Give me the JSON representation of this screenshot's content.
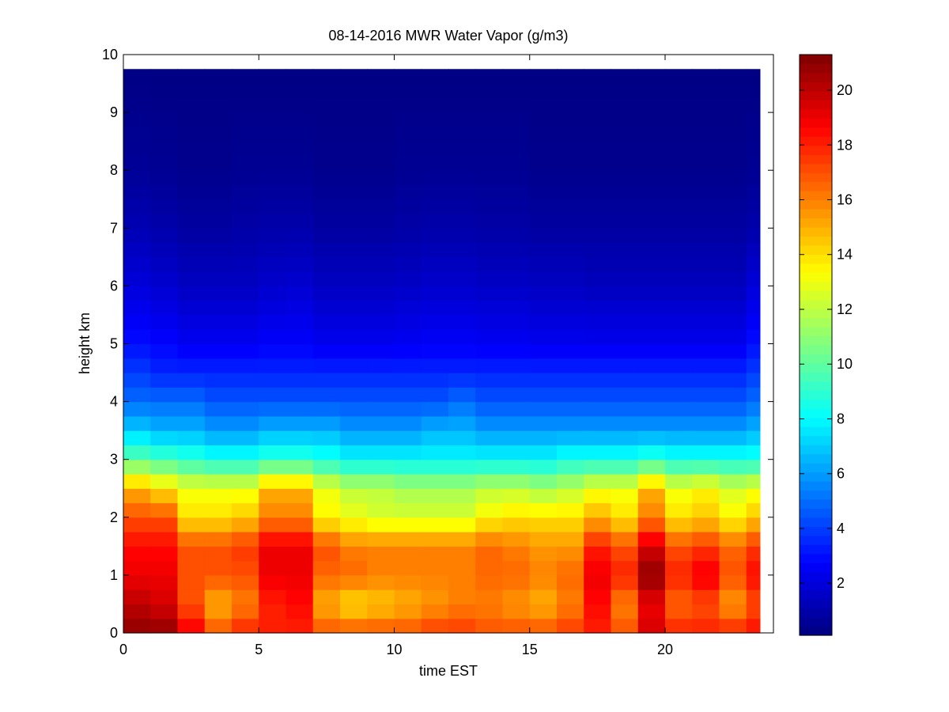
{
  "chart_data": {
    "type": "heatmap",
    "title": "08-14-2016 MWR Water Vapor (g/m3)",
    "xlabel": "time EST",
    "ylabel": "height km",
    "xlim": [
      0,
      24
    ],
    "ylim": [
      0,
      10
    ],
    "xticks": [
      0,
      5,
      10,
      15,
      20
    ],
    "yticks": [
      0,
      1,
      2,
      3,
      4,
      5,
      6,
      7,
      8,
      9,
      10
    ],
    "colormap": "jet",
    "clim": [
      0.1,
      21.3
    ],
    "colorbar_ticks": [
      2,
      4,
      6,
      8,
      10,
      12,
      14,
      16,
      18,
      20
    ],
    "data_extent": {
      "x": [
        0,
        23.5
      ],
      "y": [
        0,
        9.75
      ]
    },
    "time_hours": [
      0.5,
      1.5,
      2.5,
      3.5,
      4.5,
      5.5,
      6.5,
      7.5,
      8.5,
      9.5,
      10.5,
      11.5,
      12.5,
      13.5,
      14.5,
      15.5,
      16.5,
      17.5,
      18.5,
      19.5,
      20.5,
      21.5,
      22.5,
      23.5
    ],
    "profile_heights_km": [
      0,
      0.5,
      1.0,
      1.5,
      2.0,
      2.5,
      3.0,
      3.5,
      4.0,
      4.5,
      5.0,
      6.0,
      7.0,
      8.0,
      9.75
    ],
    "values_g_m3": [
      [
        21,
        20,
        19,
        18.5,
        17,
        15,
        10,
        7,
        5,
        4,
        3,
        2,
        1.2,
        0.6,
        0.2
      ],
      [
        21,
        19.5,
        19,
        18.5,
        17,
        14,
        9.5,
        6.5,
        5,
        3.5,
        2.8,
        1.8,
        1,
        0.5,
        0.2
      ],
      [
        19,
        17,
        17,
        17,
        14,
        13,
        9,
        6.5,
        5,
        3.5,
        2.5,
        1.5,
        0.8,
        0.4,
        0.2
      ],
      [
        17,
        15,
        17,
        17,
        14,
        13,
        8.5,
        6,
        4.5,
        3.5,
        2.5,
        1.5,
        0.8,
        0.4,
        0.2
      ],
      [
        18,
        16,
        17,
        17.5,
        14.5,
        13,
        8.5,
        6,
        4.5,
        3.5,
        2.5,
        1.5,
        0.9,
        0.5,
        0.2
      ],
      [
        18,
        18,
        19,
        19,
        16,
        15,
        9,
        6.5,
        4.5,
        3.5,
        2.7,
        1.7,
        1,
        0.5,
        0.2
      ],
      [
        18,
        18.5,
        19,
        19,
        16,
        15,
        9,
        6.5,
        4.5,
        3.5,
        2.7,
        1.8,
        1,
        0.5,
        0.2
      ],
      [
        17,
        15,
        16.5,
        17,
        13.5,
        13,
        8.5,
        6.5,
        4.5,
        3.5,
        2.4,
        1.5,
        0.8,
        0.4,
        0.2
      ],
      [
        17,
        14,
        16.5,
        16,
        13,
        12,
        8,
        6,
        4.5,
        3.5,
        2.4,
        1.5,
        0.8,
        0.4,
        0.2
      ],
      [
        17,
        14.5,
        16,
        16,
        12.5,
        12,
        8,
        6,
        4.5,
        3.5,
        2.4,
        1.5,
        0.8,
        0.4,
        0.2
      ],
      [
        17,
        15,
        16,
        16,
        12.5,
        11.5,
        8,
        6,
        4.5,
        3.5,
        2.5,
        1.6,
        0.9,
        0.5,
        0.2
      ],
      [
        17.5,
        15.5,
        16,
        16,
        12.5,
        11.5,
        8,
        6.5,
        4.5,
        3.5,
        2.6,
        1.7,
        1,
        0.5,
        0.2
      ],
      [
        17.5,
        16,
        16,
        16,
        12.5,
        11.5,
        8,
        6.5,
        5,
        3.5,
        2.6,
        1.7,
        1,
        0.5,
        0.2
      ],
      [
        17,
        16,
        16.5,
        16.5,
        13.5,
        12,
        8,
        6,
        4.5,
        3.5,
        2.5,
        1.6,
        0.9,
        0.5,
        0.2
      ],
      [
        17,
        15.5,
        16.5,
        16,
        14,
        12,
        8,
        6,
        4.5,
        3.5,
        2.5,
        1.6,
        0.9,
        0.5,
        0.2
      ],
      [
        17,
        15,
        16,
        15.5,
        14,
        11.5,
        8,
        6,
        4.5,
        3.5,
        2.4,
        1.5,
        0.8,
        0.4,
        0.2
      ],
      [
        17.5,
        16,
        16.5,
        15.5,
        14,
        12,
        8.5,
        6,
        4.5,
        3.5,
        2.4,
        1.5,
        0.8,
        0.4,
        0.2
      ],
      [
        18,
        18.5,
        19,
        18,
        15,
        13,
        8.5,
        6,
        4.5,
        3.5,
        2.4,
        1.4,
        0.8,
        0.4,
        0.2
      ],
      [
        17,
        16,
        18,
        17,
        14,
        13,
        8.5,
        6,
        4.5,
        3.5,
        2.4,
        1.4,
        0.8,
        0.4,
        0.2
      ],
      [
        19.5,
        19,
        21,
        19.5,
        16,
        15,
        9,
        6,
        4.5,
        3.5,
        2.4,
        1.4,
        0.8,
        0.4,
        0.2
      ],
      [
        18,
        16.5,
        18,
        17,
        14,
        13,
        8.5,
        6,
        4.5,
        3.5,
        2.4,
        1.4,
        0.8,
        0.4,
        0.2
      ],
      [
        18,
        17,
        19,
        17.5,
        14.5,
        13.5,
        8.5,
        6,
        4.5,
        3.5,
        2.4,
        1.4,
        0.8,
        0.4,
        0.2
      ],
      [
        18,
        15.5,
        17,
        16.5,
        13.5,
        12.5,
        8.5,
        6,
        4.5,
        3.5,
        2.4,
        1.4,
        0.8,
        0.4,
        0.2
      ],
      [
        18.5,
        17,
        18.5,
        17.5,
        14.5,
        13,
        8.5,
        6.5,
        5,
        4,
        3,
        2,
        1,
        0.5,
        0.2
      ]
    ]
  }
}
